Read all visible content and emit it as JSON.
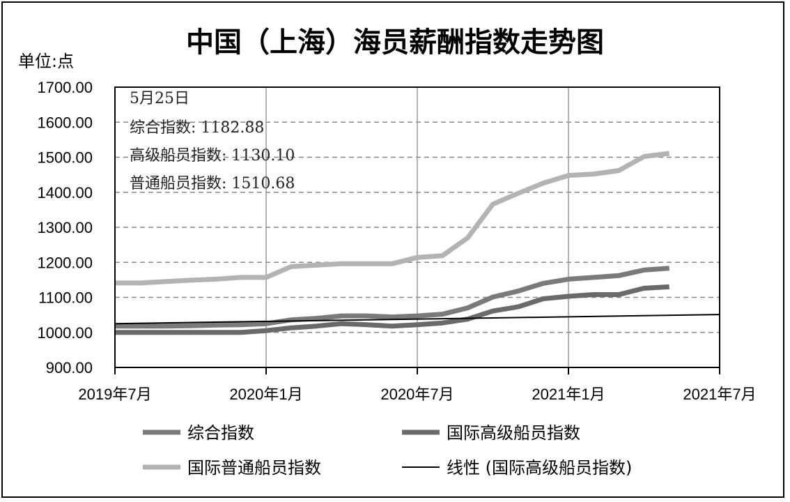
{
  "title": "中国（上海）海员薪酬指数走势图",
  "unit_label": "单位:点",
  "annotation": {
    "date": "5月25日",
    "lines": [
      {
        "label": "综合指数:",
        "value": "1182.88"
      },
      {
        "label": "高级船员指数:",
        "value": "1130.10"
      },
      {
        "label": "普通船员指数:",
        "value": "1510.68"
      }
    ]
  },
  "chart_data": {
    "type": "line",
    "title": "中国（上海）海员薪酬指数走势图",
    "ylabel": "单位:点",
    "xlabel": "",
    "ylim": [
      900,
      1700
    ],
    "yticks": [
      "1700.00",
      "1600.00",
      "1500.00",
      "1400.00",
      "1300.00",
      "1200.00",
      "1100.00",
      "1000.00",
      "900.00"
    ],
    "xlim": [
      "2019-07",
      "2021-07"
    ],
    "xticks": [
      "2019年7月",
      "2020年1月",
      "2020年7月",
      "2021年1月",
      "2021年7月"
    ],
    "grid": true,
    "legend_position": "bottom",
    "series": [
      {
        "name": "综合指数",
        "color": "#7a7a7a",
        "points": [
          [
            "2019-07",
            1018
          ],
          [
            "2019-08",
            1018
          ],
          [
            "2019-09",
            1018
          ],
          [
            "2019-10",
            1019
          ],
          [
            "2019-11",
            1021
          ],
          [
            "2019-12",
            1022
          ],
          [
            "2020-01",
            1025
          ],
          [
            "2020-02",
            1036
          ],
          [
            "2020-03",
            1040
          ],
          [
            "2020-04",
            1047
          ],
          [
            "2020-05",
            1047
          ],
          [
            "2020-06",
            1044
          ],
          [
            "2020-07",
            1047
          ],
          [
            "2020-08",
            1052
          ],
          [
            "2020-09",
            1070
          ],
          [
            "2020-10",
            1101
          ],
          [
            "2020-11",
            1118
          ],
          [
            "2020-12",
            1140
          ],
          [
            "2021-01",
            1152
          ],
          [
            "2021-02",
            1157
          ],
          [
            "2021-03",
            1162
          ],
          [
            "2021-04",
            1178
          ],
          [
            "2021-05",
            1183
          ]
        ]
      },
      {
        "name": "国际高级船员指数",
        "color": "#6a6a6a",
        "points": [
          [
            "2019-07",
            1000
          ],
          [
            "2019-08",
            1000
          ],
          [
            "2019-09",
            1000
          ],
          [
            "2019-10",
            1000
          ],
          [
            "2019-11",
            1000
          ],
          [
            "2019-12",
            1000
          ],
          [
            "2020-01",
            1005
          ],
          [
            "2020-02",
            1013
          ],
          [
            "2020-03",
            1018
          ],
          [
            "2020-04",
            1025
          ],
          [
            "2020-05",
            1022
          ],
          [
            "2020-06",
            1018
          ],
          [
            "2020-07",
            1022
          ],
          [
            "2020-08",
            1027
          ],
          [
            "2020-09",
            1038
          ],
          [
            "2020-10",
            1061
          ],
          [
            "2020-11",
            1073
          ],
          [
            "2020-12",
            1096
          ],
          [
            "2021-01",
            1103
          ],
          [
            "2021-02",
            1108
          ],
          [
            "2021-03",
            1108
          ],
          [
            "2021-04",
            1126
          ],
          [
            "2021-05",
            1130
          ]
        ]
      },
      {
        "name": "国际普通船员指数",
        "color": "#b3b3b3",
        "points": [
          [
            "2019-07",
            1141
          ],
          [
            "2019-08",
            1141
          ],
          [
            "2019-09",
            1145
          ],
          [
            "2019-10",
            1149
          ],
          [
            "2019-11",
            1152
          ],
          [
            "2019-12",
            1157
          ],
          [
            "2020-01",
            1157
          ],
          [
            "2020-02",
            1188
          ],
          [
            "2020-03",
            1192
          ],
          [
            "2020-04",
            1196
          ],
          [
            "2020-05",
            1196
          ],
          [
            "2020-06",
            1196
          ],
          [
            "2020-07",
            1214
          ],
          [
            "2020-08",
            1219
          ],
          [
            "2020-09",
            1270
          ],
          [
            "2020-10",
            1366
          ],
          [
            "2020-11",
            1397
          ],
          [
            "2020-12",
            1426
          ],
          [
            "2021-01",
            1448
          ],
          [
            "2021-02",
            1452
          ],
          [
            "2021-03",
            1462
          ],
          [
            "2021-04",
            1502
          ],
          [
            "2021-05",
            1511
          ]
        ]
      },
      {
        "name": "线性 (国际高级船员指数)",
        "color": "#000000",
        "points": [
          [
            "2019-07",
            1025
          ],
          [
            "2021-07",
            1051
          ]
        ]
      }
    ]
  },
  "legend": [
    {
      "label": "综合指数",
      "color": "#7a7a7a",
      "thick": true
    },
    {
      "label": "国际高级船员指数",
      "color": "#6a6a6a",
      "thick": true
    },
    {
      "label": "国际普通船员指数",
      "color": "#b3b3b3",
      "thick": true
    },
    {
      "label": "线性 (国际高级船员指数)",
      "color": "#000000",
      "thick": false
    }
  ]
}
